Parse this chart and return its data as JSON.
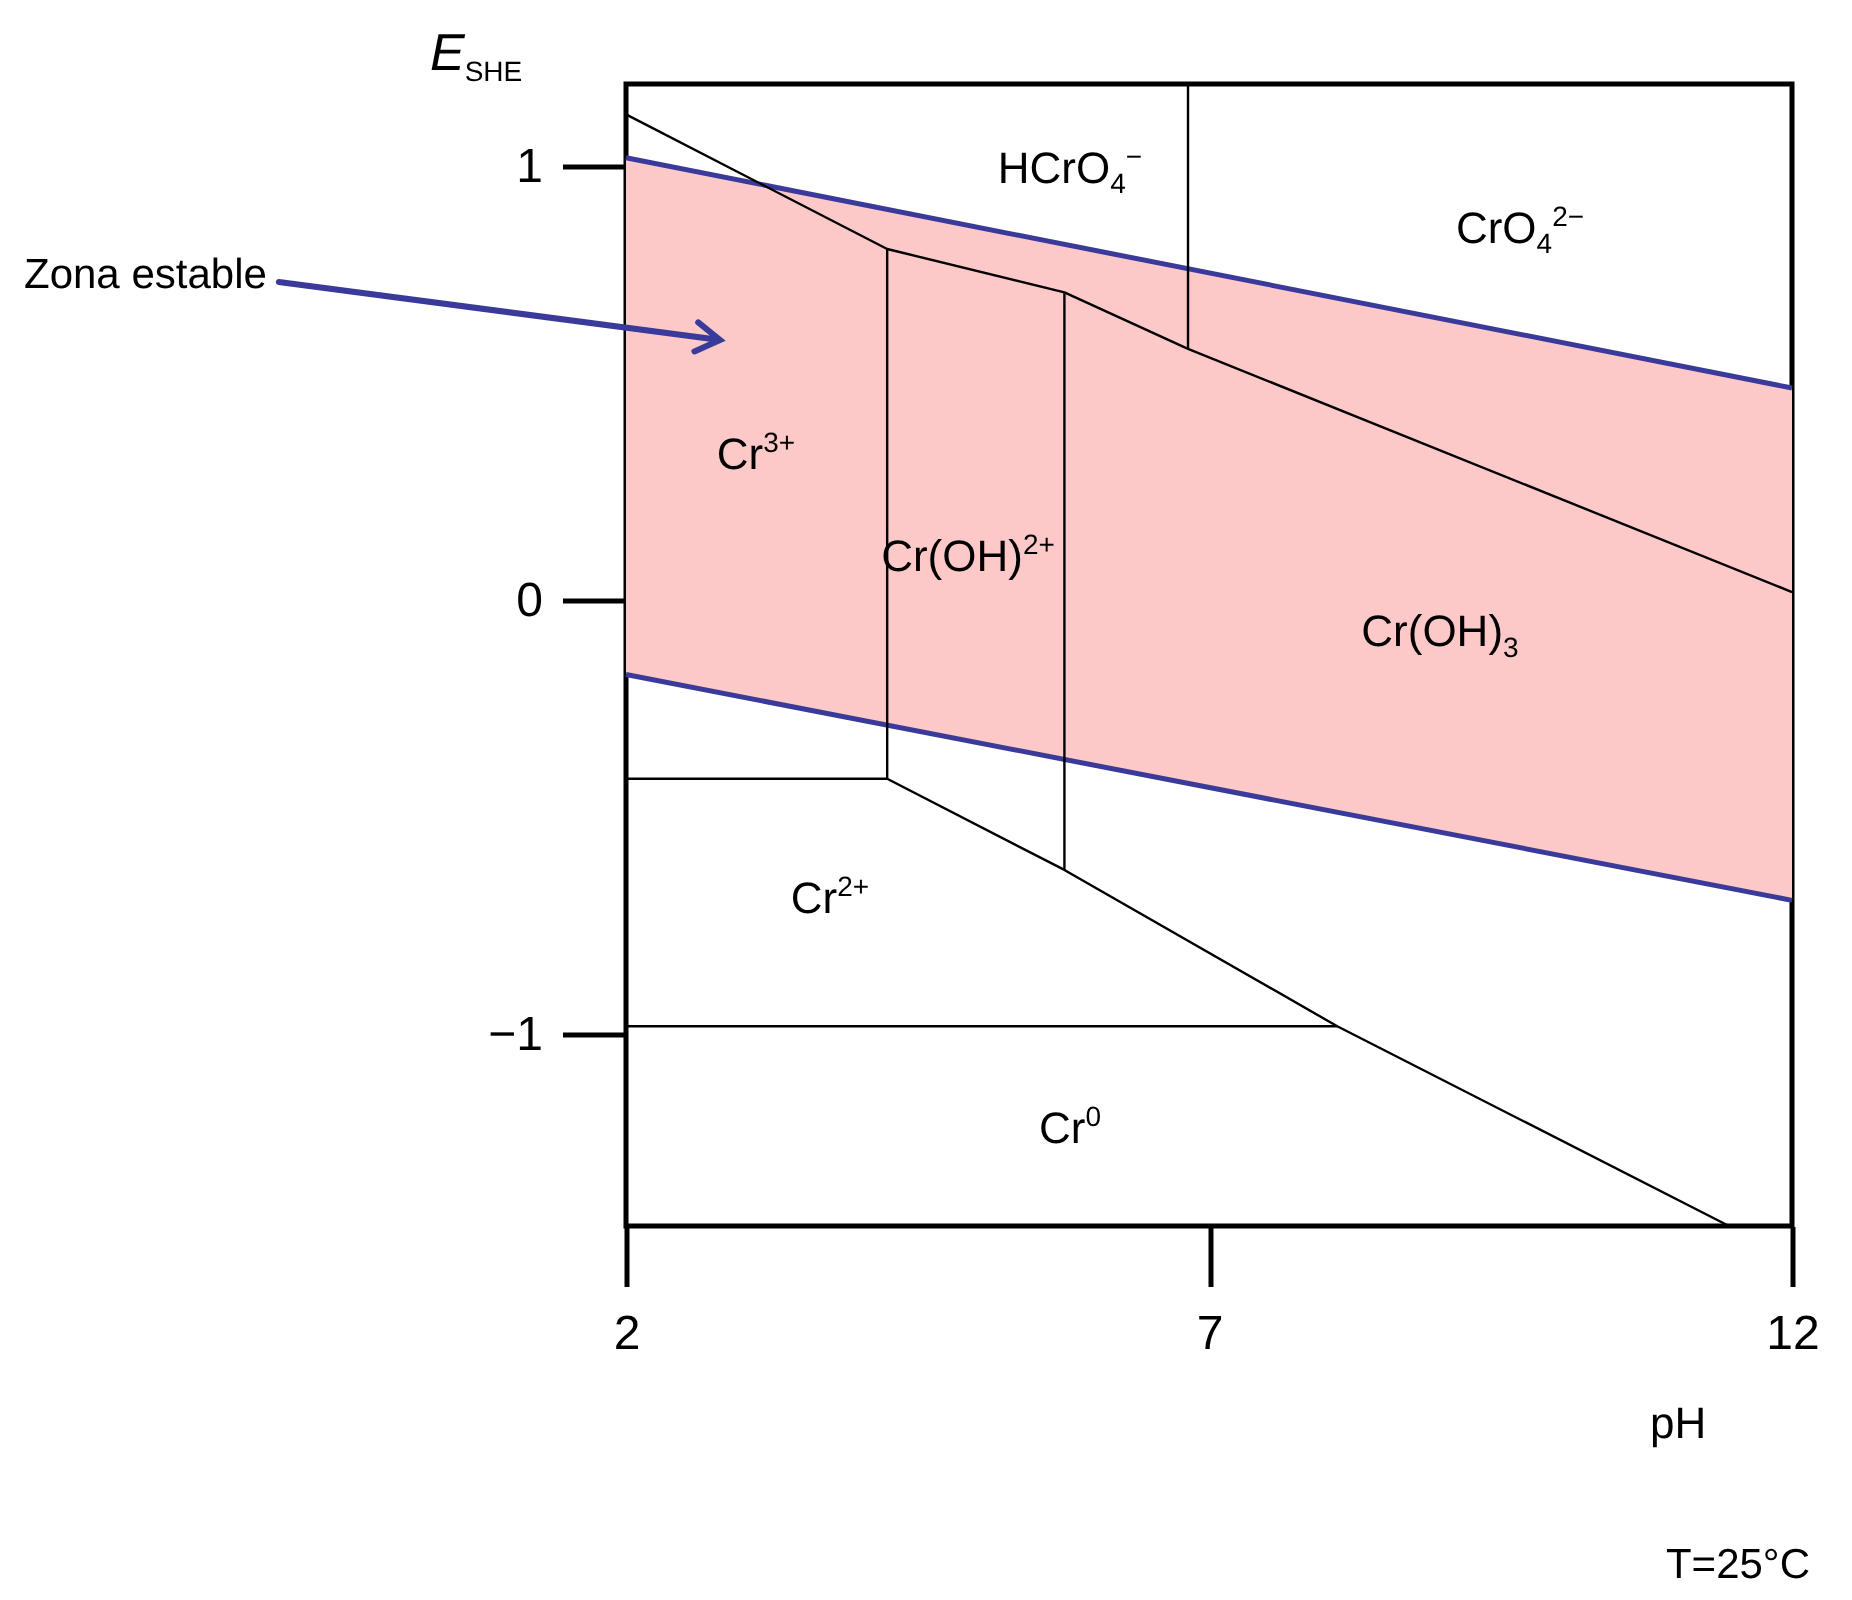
{
  "chart_data": {
    "type": "line",
    "ylabel": "E$_{SHE}$",
    "xlabel": "pH",
    "xlim": [
      2,
      12
    ],
    "ylim": [
      -1.44,
      1.19
    ],
    "xticks": [
      2,
      7,
      12
    ],
    "yticks": [
      -1,
      0,
      1
    ],
    "series": [
      {
        "color": "#3a3a9a",
        "x": [
          2,
          12
        ],
        "values": [
          1.02,
          0.49
        ],
        "lower": [
          -0.17,
          -0.69
        ],
        "upper": [
          1.02,
          0.49
        ]
      },
      {
        "color": "#3a3a9a",
        "x": [
          2,
          12
        ],
        "values": [
          -0.17,
          -0.69
        ]
      },
      {
        "color": "#000000",
        "x": [
          2,
          4.24,
          5.76,
          6.82,
          12
        ],
        "values": [
          1.12,
          0.81,
          0.71,
          0.58,
          0.02
        ]
      },
      {
        "color": "#000000",
        "x": [
          6.82,
          6.82
        ],
        "values": [
          1.19,
          0.58
        ]
      },
      {
        "color": "#000000",
        "x": [
          4.24,
          4.24
        ],
        "values": [
          0.81,
          -0.41
        ]
      },
      {
        "color": "#000000",
        "x": [
          5.76,
          5.76
        ],
        "values": [
          0.71,
          -0.62
        ]
      },
      {
        "color": "#000000",
        "x": [
          2,
          4.24
        ],
        "values": [
          -0.41,
          -0.41
        ]
      },
      {
        "color": "#000000",
        "x": [
          4.24,
          5.76,
          8.1,
          11.46
        ],
        "values": [
          -0.41,
          -0.62,
          -0.98,
          -1.44
        ]
      },
      {
        "color": "#000000",
        "x": [
          2,
          8.1
        ],
        "values": [
          -0.98,
          -0.98
        ]
      }
    ],
    "annotations": [
      "HCrO$_{4}$$^{−}$",
      "CrO$_{4}$$^{2−}$",
      "Cr$^{3+}$",
      "Cr(OH)$^{2+}$",
      "Cr(OH)$_{3}$",
      "Cr$^{2+}$",
      "Cr$^{0}$",
      "Zona estable",
      "T=25°C"
    ]
  }
}
